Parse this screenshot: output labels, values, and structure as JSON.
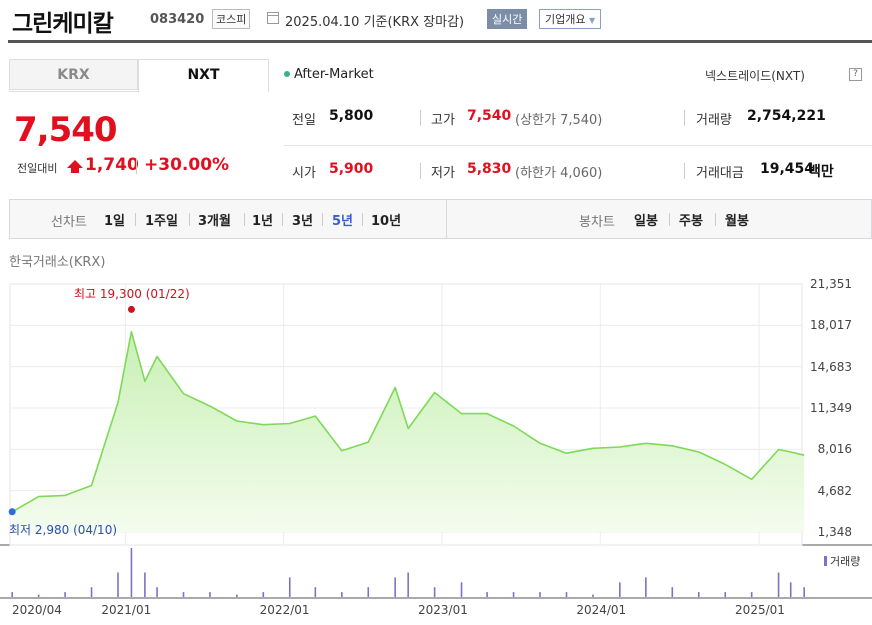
{
  "header": {
    "name": "그린케미칼",
    "code": "083420",
    "market": "코스피",
    "date": "2025.04.10 기준(KRX 장마감)",
    "realtime": "실시간",
    "company_info": "기업개요"
  },
  "exchange_tabs": [
    "KRX",
    "NXT"
  ],
  "after_market": "After-Market",
  "nxt_link": "넥스트레이드(NXT)",
  "help": "?",
  "quote": {
    "price": "7,540",
    "change_label": "전일대비",
    "change": "1,740",
    "change_pct": "+30.00%",
    "prev_label": "전일",
    "prev": "5,800",
    "open_label": "시가",
    "open": "5,900",
    "high_label": "고가",
    "high": "7,540",
    "upper_limit": "(상한가 7,540)",
    "low_label": "저가",
    "low": "5,830",
    "lower_limit": "(하한가 4,060)",
    "volume_label": "거래량",
    "volume": "2,754,221",
    "amount_label": "거래대금",
    "amount": "19,454",
    "amount_unit": "백만"
  },
  "period_bar": {
    "line_label": "선차트",
    "line_periods": [
      "1일",
      "1주일",
      "3개월",
      "1년",
      "3년",
      "5년",
      "10년"
    ],
    "selected": "5년",
    "candle_label": "봉차트",
    "candle_periods": [
      "일봉",
      "주봉",
      "월봉"
    ]
  },
  "chart_data": {
    "type": "area",
    "source_label": "한국거래소(KRX)",
    "x": [
      "2020-04",
      "2020-06",
      "2020-08",
      "2020-10",
      "2020-12",
      "2021-01",
      "2021-02",
      "2021-03",
      "2021-05",
      "2021-07",
      "2021-09",
      "2021-11",
      "2022-01",
      "2022-03",
      "2022-05",
      "2022-07",
      "2022-09",
      "2022-10",
      "2022-12",
      "2023-02",
      "2023-04",
      "2023-06",
      "2023-08",
      "2023-10",
      "2023-12",
      "2024-02",
      "2024-04",
      "2024-06",
      "2024-08",
      "2024-10",
      "2024-12",
      "2025-02",
      "2025-03",
      "2025-04"
    ],
    "y": [
      2980,
      4200,
      4300,
      5100,
      11800,
      17500,
      13500,
      15500,
      12500,
      11500,
      10300,
      10000,
      10100,
      10700,
      7900,
      8600,
      13000,
      9700,
      12600,
      10900,
      10900,
      9900,
      8500,
      7700,
      8100,
      8200,
      8500,
      8300,
      7800,
      6800,
      5600,
      8000,
      7800,
      7540
    ],
    "ylim": [
      1348,
      21351
    ],
    "yticks": [
      "21,351",
      "18,017",
      "14,683",
      "11,349",
      "8,016",
      "4,682",
      "1,348"
    ],
    "xticks": [
      "2020/04",
      "2021/01",
      "2022/01",
      "2023/01",
      "2024/01",
      "2025/01"
    ],
    "high_label": "최고 19,300 (01/22)",
    "low_label": "최저 2,980 (04/10)",
    "volume_label": "거래량",
    "volume_relative": [
      0.1,
      0.05,
      0.1,
      0.2,
      0.5,
      1.0,
      0.5,
      0.2,
      0.1,
      0.1,
      0.05,
      0.1,
      0.4,
      0.2,
      0.1,
      0.2,
      0.4,
      0.5,
      0.2,
      0.3,
      0.1,
      0.1,
      0.1,
      0.1,
      0.05,
      0.3,
      0.4,
      0.2,
      0.1,
      0.1,
      0.1,
      0.5,
      0.3,
      0.2
    ],
    "colors": {
      "line": "#7ed957",
      "area_top": "#c8f0b4",
      "area_bottom": "#f4fcef",
      "high": "#d0101e",
      "low": "#2f6bd6",
      "volume": "#8070c8"
    },
    "grid": true
  }
}
